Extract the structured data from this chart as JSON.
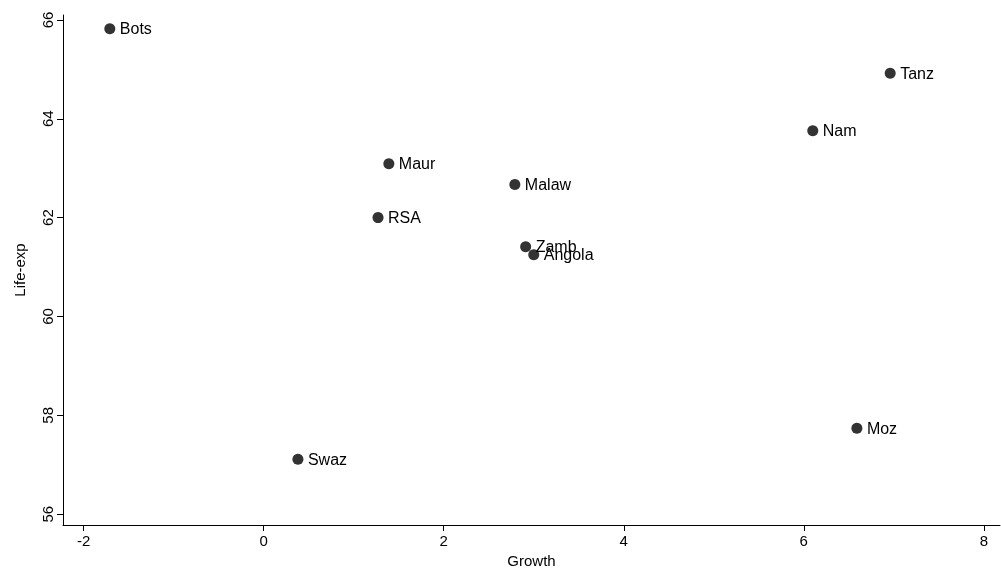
{
  "chart_data": {
    "type": "scatter",
    "xlabel": "Growth",
    "ylabel": "Life-exp",
    "x": [
      -1.71,
      6.96,
      6.1,
      1.39,
      2.79,
      1.27,
      2.91,
      3.0,
      6.59,
      0.38
    ],
    "values": [
      65.82,
      64.92,
      63.76,
      63.09,
      62.67,
      62.0,
      61.41,
      61.25,
      57.74,
      57.11
    ],
    "color": "#000000",
    "marker": "circle",
    "grid": false,
    "xlim": [
      -2.23,
      8.18
    ],
    "ylim": [
      55.78,
      66.1
    ],
    "xticks": [
      -2,
      0,
      2,
      4,
      6,
      8
    ],
    "yticks": [
      56,
      58,
      60,
      62,
      64,
      66
    ],
    "annotations": [
      {
        "text": "Bots",
        "x": -1.71,
        "y": 65.82
      },
      {
        "text": "Tanz",
        "x": 6.96,
        "y": 64.92
      },
      {
        "text": "Nam",
        "x": 6.1,
        "y": 63.76
      },
      {
        "text": "Maur",
        "x": 1.39,
        "y": 63.09
      },
      {
        "text": "Malaw",
        "x": 2.79,
        "y": 62.67
      },
      {
        "text": "RSA",
        "x": 1.27,
        "y": 62.0
      },
      {
        "text": "Zamb",
        "x": 2.91,
        "y": 61.41
      },
      {
        "text": "Angola",
        "x": 3.0,
        "y": 61.25
      },
      {
        "text": "Moz",
        "x": 6.59,
        "y": 57.74
      },
      {
        "text": "Swaz",
        "x": 0.38,
        "y": 57.11
      }
    ]
  }
}
